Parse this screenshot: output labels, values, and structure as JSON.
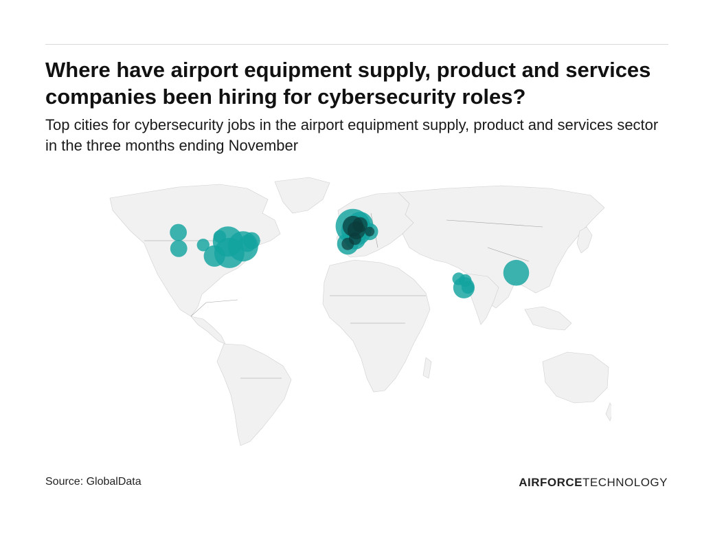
{
  "header": {
    "title": "Where have airport equipment supply, product and services companies been hiring for cybersecurity roles?",
    "subtitle": "Top cities for cybersecurity jobs in the airport equipment supply, product and services sector in the three months ending November"
  },
  "footer": {
    "source": "Source: GlobalData",
    "brand_bold": "AIRFORCE",
    "brand_light": "TECHNOLOGY"
  },
  "colors": {
    "bubble": "#14a3a0",
    "land": "#f1f1f1",
    "overlap_dark": "#0b3a3a"
  },
  "map": {
    "type": "bubble-map",
    "projection": "world",
    "bubbles": [
      {
        "region": "Seattle area",
        "lon": -122.3,
        "lat": 47.6,
        "size": 2
      },
      {
        "region": "San Francisco Bay area",
        "lon": -122.0,
        "lat": 37.5,
        "size": 2
      },
      {
        "region": "Denver area",
        "lon": -104.9,
        "lat": 39.7,
        "size": 1
      },
      {
        "region": "Dallas area",
        "lon": -97.0,
        "lat": 32.8,
        "size": 3
      },
      {
        "region": "Huntsville area",
        "lon": -86.6,
        "lat": 34.7,
        "size": 5
      },
      {
        "region": "Washington DC area",
        "lon": -77.0,
        "lat": 38.9,
        "size": 5
      },
      {
        "region": "Chicago area",
        "lon": -87.6,
        "lat": 41.9,
        "size": 5
      },
      {
        "region": "Boston area",
        "lon": -71.0,
        "lat": 42.4,
        "size": 2
      },
      {
        "region": "New York area",
        "lon": -74.0,
        "lat": 40.7,
        "size": 2
      },
      {
        "region": "Minneapolis area",
        "lon": -93.3,
        "lat": 45.0,
        "size": 1
      },
      {
        "region": "London",
        "lon": -0.1,
        "lat": 51.5,
        "size": 6
      },
      {
        "region": "Paris",
        "lon": 2.3,
        "lat": 48.9,
        "size": 5
      },
      {
        "region": "Amsterdam",
        "lon": 4.9,
        "lat": 52.4,
        "size": 4
      },
      {
        "region": "Toulouse",
        "lon": 1.4,
        "lat": 43.6,
        "size": 3
      },
      {
        "region": "Munich",
        "lon": 11.6,
        "lat": 48.1,
        "size": 2
      },
      {
        "region": "Madrid",
        "lon": -3.7,
        "lat": 40.4,
        "size": 3
      },
      {
        "region": "Hong Kong area",
        "lon": 114.2,
        "lat": 22.3,
        "size": 4
      },
      {
        "region": "Bangalore",
        "lon": 77.6,
        "lat": 12.97,
        "size": 3
      },
      {
        "region": "Hyderabad",
        "lon": 78.5,
        "lat": 17.4,
        "size": 1
      },
      {
        "region": "Pune",
        "lon": 73.9,
        "lat": 18.5,
        "size": 1
      },
      {
        "region": "Chennai",
        "lon": 80.3,
        "lat": 13.1,
        "size": 1
      }
    ]
  }
}
